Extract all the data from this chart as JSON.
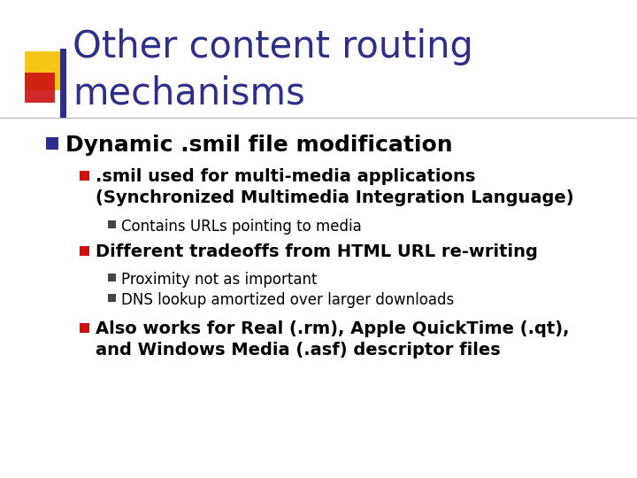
{
  "title_line1": "Other content routing",
  "title_line2": "mechanisms",
  "title_color": "#2E2E8B",
  "bg_color": "#FFFFFF",
  "accent_yellow": "#F5C518",
  "accent_red": "#CC1111",
  "accent_blue": "#2E2E8B",
  "bullet1_color": "#2E2E8B",
  "bullet2_color": "#CC1111",
  "bullet3_color": "#444444",
  "level1_text": "Dynamic .smil file modification",
  "level2_text_0": ".smil used for multi-media applications\n(Synchronized Multimedia Integration Language)",
  "level2_text_1": "Different tradeoffs from HTML URL re-writing",
  "level2_text_2": "Also works for Real (.rm), Apple QuickTime (.qt),\nand Windows Media (.asf) descriptor files",
  "level3_smil": "Contains URLs pointing to media",
  "level3_trade_0": "Proximity not as important",
  "level3_trade_1": "DNS lookup amortized over larger downloads"
}
